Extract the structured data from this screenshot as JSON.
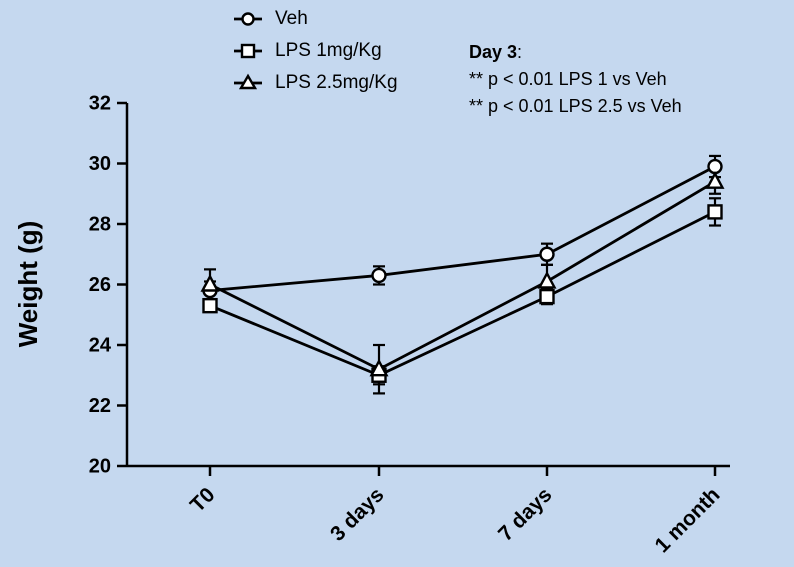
{
  "chart_data": {
    "type": "line",
    "title": "",
    "xlabel": "",
    "ylabel": "Weight (g)",
    "ylim": [
      20,
      32
    ],
    "yticks": [
      "20",
      "22",
      "24",
      "26",
      "28",
      "30",
      "32"
    ],
    "categories": [
      "T0",
      "3 days",
      "7 days",
      "1 month"
    ],
    "grid": false,
    "legend_position": "top-left",
    "series": [
      {
        "name": "Veh",
        "marker": "circle",
        "values": [
          25.8,
          26.3,
          27.0,
          29.9
        ],
        "error": [
          0.3,
          0.3,
          0.35,
          0.35
        ]
      },
      {
        "name": "LPS 1mg/Kg",
        "marker": "square",
        "values": [
          25.3,
          23.0,
          25.6,
          28.4
        ],
        "error": [
          0.2,
          0.3,
          0.25,
          0.45
        ]
      },
      {
        "name": "LPS 2.5mg/Kg",
        "marker": "triangle",
        "values": [
          26.0,
          23.2,
          26.1,
          29.4
        ],
        "error": [
          0.5,
          0.8,
          0.55,
          0.4
        ]
      }
    ],
    "annotation": {
      "heading_bold": "Day 3",
      "heading_rest": ":",
      "lines": [
        "** p < 0.01 LPS 1 vs Veh",
        "** p < 0.01 LPS 2.5 vs Veh"
      ]
    }
  }
}
